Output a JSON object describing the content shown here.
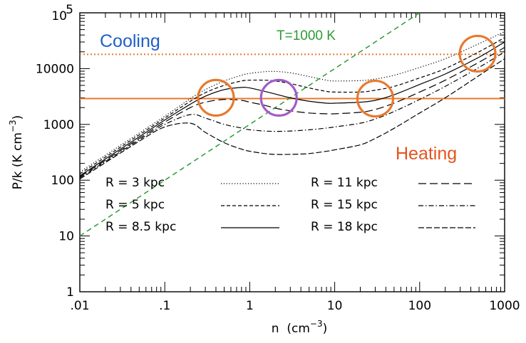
{
  "chart_data": {
    "type": "line",
    "xlabel": "n",
    "xlabel_unit_base": "(cm",
    "xlabel_unit_exp": "−3",
    "xlabel_unit_close": ")",
    "ylabel": "P/k",
    "ylabel_unit_base": "(K cm",
    "ylabel_unit_exp": "−3",
    "ylabel_unit_close": ")",
    "x_scale": "log",
    "y_scale": "log",
    "xlim": [
      0.01,
      1000
    ],
    "ylim": [
      1,
      100000
    ],
    "x_tick_labels": [
      ".01",
      ".1",
      "1",
      "10",
      "100",
      "1000"
    ],
    "x_tick_values": [
      0.01,
      0.1,
      1,
      10,
      100,
      1000
    ],
    "y_tick_labels": [
      "1",
      "10",
      "100",
      "1000",
      "10000"
    ],
    "y_tick_values": [
      1,
      10,
      100,
      1000,
      10000
    ],
    "y_top_label_base": "10",
    "y_top_label_exp": "5",
    "series": [
      {
        "name": "R = 3 kpc",
        "dash": "dotted",
        "x": [
          0.01,
          0.05,
          0.1,
          0.2,
          0.3,
          0.5,
          0.8,
          1,
          1.5,
          2,
          3,
          5,
          8,
          10,
          20,
          30,
          50,
          100,
          200,
          500,
          1000
        ],
        "y": [
          140,
          700,
          1400,
          2900,
          4200,
          6000,
          7600,
          8200,
          8800,
          8900,
          8400,
          7200,
          6200,
          6000,
          6100,
          6500,
          7600,
          10500,
          15000,
          28000,
          46000
        ]
      },
      {
        "name": "R = 5 kpc",
        "dash": "short-dash",
        "x": [
          0.01,
          0.05,
          0.1,
          0.2,
          0.3,
          0.5,
          0.8,
          1,
          1.5,
          2,
          3,
          5,
          8,
          10,
          20,
          30,
          50,
          100,
          200,
          500,
          1000
        ],
        "y": [
          130,
          650,
          1300,
          2600,
          3700,
          5000,
          6000,
          6200,
          6200,
          6000,
          5400,
          4500,
          3900,
          3800,
          3800,
          4100,
          4800,
          6800,
          10000,
          20000,
          36000
        ]
      },
      {
        "name": "R = 8.5 kpc",
        "dash": "solid",
        "x": [
          0.01,
          0.05,
          0.1,
          0.2,
          0.3,
          0.5,
          0.8,
          1,
          1.5,
          2,
          3,
          5,
          8,
          10,
          20,
          30,
          50,
          100,
          200,
          500,
          1000
        ],
        "y": [
          120,
          600,
          1200,
          2300,
          3200,
          4200,
          4600,
          4500,
          3900,
          3500,
          3000,
          2600,
          2400,
          2400,
          2500,
          2700,
          3400,
          5200,
          8000,
          16000,
          30000
        ]
      },
      {
        "name": "R = 11 kpc",
        "dash": "long-dash",
        "x": [
          0.01,
          0.05,
          0.1,
          0.2,
          0.3,
          0.5,
          0.8,
          1,
          1.5,
          2,
          3,
          5,
          8,
          10,
          20,
          30,
          50,
          100,
          200,
          500,
          1000
        ],
        "y": [
          115,
          560,
          1100,
          2000,
          2500,
          2800,
          2700,
          2500,
          2200,
          1950,
          1750,
          1600,
          1550,
          1550,
          1650,
          1850,
          2400,
          3800,
          6200,
          13000,
          24000
        ]
      },
      {
        "name": "R = 15 kpc",
        "dash": "dash-dot",
        "x": [
          0.01,
          0.05,
          0.1,
          0.2,
          0.3,
          0.5,
          0.8,
          1,
          1.5,
          2,
          3,
          5,
          8,
          10,
          20,
          30,
          50,
          100,
          200,
          500,
          1000
        ],
        "y": [
          110,
          530,
          1000,
          1500,
          1300,
          1000,
          860,
          800,
          760,
          750,
          760,
          800,
          860,
          900,
          1050,
          1250,
          1700,
          2800,
          4800,
          10500,
          20000
        ]
      },
      {
        "name": "R = 18 kpc",
        "dash": "mid-dash",
        "x": [
          0.01,
          0.05,
          0.1,
          0.2,
          0.3,
          0.5,
          0.8,
          1,
          1.5,
          2,
          3,
          5,
          8,
          10,
          20,
          30,
          50,
          100,
          200,
          500,
          1000
        ],
        "y": [
          105,
          500,
          900,
          1050,
          720,
          470,
          360,
          330,
          300,
          290,
          290,
          300,
          330,
          350,
          430,
          560,
          850,
          1600,
          3000,
          7500,
          15000
        ]
      }
    ],
    "isotherm": {
      "label": "T=1000 K",
      "color": "#2e9a35",
      "x": [
        0.01,
        10
      ],
      "y": [
        10,
        10000
      ]
    },
    "hlines": [
      {
        "y": 18000,
        "style": "dotted",
        "color": "#e8792e"
      },
      {
        "y": 2900,
        "style": "solid",
        "color": "#e8792e"
      }
    ],
    "annotations": [
      {
        "text": "Cooling",
        "color": "#1f5fc8"
      },
      {
        "text": "Heating",
        "color": "#e4541f"
      }
    ],
    "circles": [
      {
        "x": 0.4,
        "y": 3000,
        "color": "#e8792e"
      },
      {
        "x": 2.2,
        "y": 3000,
        "color": "#a25cc9"
      },
      {
        "x": 30,
        "y": 2900,
        "color": "#e8792e"
      },
      {
        "x": 480,
        "y": 18500,
        "color": "#e8792e"
      }
    ],
    "legend_placement": "bottom-center"
  }
}
